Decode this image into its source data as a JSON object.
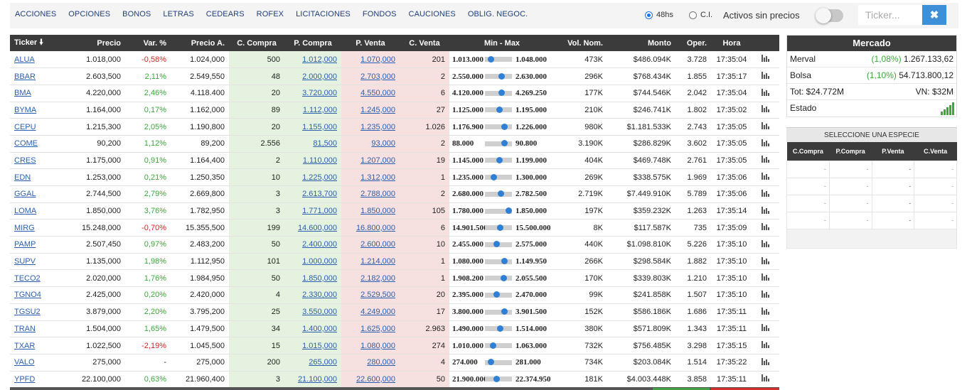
{
  "nav": [
    "ACCIONES",
    "OPCIONES",
    "BONOS",
    "LETRAS",
    "CEDEARS",
    "ROFEX",
    "LICITACIONES",
    "FONDOS",
    "CAUCIONES",
    "OBLIG. NEGOC."
  ],
  "settlement": {
    "opt1": "48hs",
    "opt2": "C.I.",
    "selected": "48hs"
  },
  "activos_label": "Activos sin precios",
  "search": {
    "placeholder": "Ticker...",
    "clear_icon": "close-icon"
  },
  "colors": {
    "header_bg": "#3b3b3b",
    "buy_bg": "#e4f2df",
    "sell_bg": "#f7e0e0",
    "positive": "#3aa83a",
    "negative": "#d22222",
    "accent": "#3d8fd8"
  },
  "table": {
    "headers": [
      "Ticker",
      "Precio",
      "Var. %",
      "Precio A.",
      "C. Compra",
      "P. Compra",
      "P. Venta",
      "C. Venta",
      "Min - Max",
      "Vol. Nom.",
      "Monto",
      "Oper.",
      "Hora"
    ],
    "sort_icon": "sort-down-arrow-icon",
    "rows": [
      {
        "ticker": "ALUA",
        "precio": "1.018,000",
        "var": "-0,58%",
        "precio_a": "1.024,000",
        "c_compra": "500",
        "p_compra": "1.012,000",
        "p_venta": "1.070,000",
        "c_venta": "201",
        "min": "1.013.000",
        "max": "1.048.000",
        "pos": 0.14,
        "vol": "473K",
        "monto": "$486.094K",
        "oper": "3.728",
        "hora": "17:35:04"
      },
      {
        "ticker": "BBAR",
        "precio": "2.603,500",
        "var": "2,11%",
        "precio_a": "2.549,550",
        "c_compra": "48",
        "p_compra": "2.000,000",
        "p_venta": "2.703,000",
        "c_venta": "2",
        "min": "2.550.000",
        "max": "2.630.000",
        "pos": 0.67,
        "vol": "296K",
        "monto": "$768.434K",
        "oper": "1.855",
        "hora": "17:35:17"
      },
      {
        "ticker": "BMA",
        "precio": "4.220,000",
        "var": "2,46%",
        "precio_a": "4.118.400",
        "c_compra": "20",
        "p_compra": "3.720,000",
        "p_venta": "4.550,000",
        "c_venta": "6",
        "min": "4.120.000",
        "max": "4.269.250",
        "pos": 0.67,
        "vol": "177K",
        "monto": "$744.546K",
        "oper": "2.042",
        "hora": "17:35:04"
      },
      {
        "ticker": "BYMA",
        "precio": "1.164,000",
        "var": "0,17%",
        "precio_a": "1.162,000",
        "c_compra": "89",
        "p_compra": "1.112,000",
        "p_venta": "1.245,000",
        "c_venta": "27",
        "min": "1.125.000",
        "max": "1.195.000",
        "pos": 0.56,
        "vol": "210K",
        "monto": "$246.741K",
        "oper": "1.802",
        "hora": "17:35:02"
      },
      {
        "ticker": "CEPU",
        "precio": "1.215,300",
        "var": "2,05%",
        "precio_a": "1.190,800",
        "c_compra": "20",
        "p_compra": "1.155,000",
        "p_venta": "1.235,000",
        "c_venta": "1.026",
        "min": "1.176.900",
        "max": "1.226.000",
        "pos": 0.78,
        "vol": "980K",
        "monto": "$1.181.533K",
        "oper": "2.743",
        "hora": "17:35:05"
      },
      {
        "ticker": "COME",
        "precio": "90,200",
        "var": "1,12%",
        "precio_a": "89,200",
        "c_compra": "2.556",
        "p_compra": "81,500",
        "p_venta": "93,000",
        "c_venta": "2",
        "min": "88.000",
        "max": "90.800",
        "pos": 0.79,
        "vol": "3.190K",
        "monto": "$286.829K",
        "oper": "3.602",
        "hora": "17:35:05"
      },
      {
        "ticker": "CRES",
        "precio": "1.175,000",
        "var": "0,91%",
        "precio_a": "1.164,400",
        "c_compra": "2",
        "p_compra": "1.110,000",
        "p_venta": "1.207,000",
        "c_venta": "19",
        "min": "1.145.000",
        "max": "1.199.000",
        "pos": 0.56,
        "vol": "404K",
        "monto": "$469.748K",
        "oper": "2.761",
        "hora": "17:35:05"
      },
      {
        "ticker": "EDN",
        "precio": "1.253,000",
        "var": "0,21%",
        "precio_a": "1.250,350",
        "c_compra": "10",
        "p_compra": "1.225,000",
        "p_venta": "1.312,000",
        "c_venta": "1",
        "min": "1.235.000",
        "max": "1.300.000",
        "pos": 0.28,
        "vol": "269K",
        "monto": "$338.575K",
        "oper": "1.969",
        "hora": "17:35:06"
      },
      {
        "ticker": "GGAL",
        "precio": "2.744,500",
        "var": "2,79%",
        "precio_a": "2.669,800",
        "c_compra": "3",
        "p_compra": "2.613,700",
        "p_venta": "2.788,000",
        "c_venta": "2",
        "min": "2.680.000",
        "max": "2.782.500",
        "pos": 0.63,
        "vol": "2.719K",
        "monto": "$7.449.910K",
        "oper": "5.789",
        "hora": "17:35:06"
      },
      {
        "ticker": "LOMA",
        "precio": "1.850,000",
        "var": "3,76%",
        "precio_a": "1.782,950",
        "c_compra": "3",
        "p_compra": "1.771,000",
        "p_venta": "1.850,000",
        "c_venta": "105",
        "min": "1.780.000",
        "max": "1.850.000",
        "pos": 1.0,
        "vol": "197K",
        "monto": "$359.232K",
        "oper": "1.263",
        "hora": "17:35:14"
      },
      {
        "ticker": "MIRG",
        "precio": "15.248,000",
        "var": "-0,70%",
        "precio_a": "15.355,500",
        "c_compra": "199",
        "p_compra": "14.600,000",
        "p_venta": "16.800,000",
        "c_venta": "6",
        "min": "14.901.500",
        "max": "15.500.000",
        "pos": 0.58,
        "vol": "8K",
        "monto": "$117.587K",
        "oper": "735",
        "hora": "17:35:09"
      },
      {
        "ticker": "PAMP",
        "precio": "2.507,450",
        "var": "0,97%",
        "precio_a": "2.483,200",
        "c_compra": "50",
        "p_compra": "2.400,000",
        "p_venta": "2.600,000",
        "c_venta": "10",
        "min": "2.455.000",
        "max": "2.575.000",
        "pos": 0.43,
        "vol": "440K",
        "monto": "$1.098.810K",
        "oper": "5.226",
        "hora": "17:35:10"
      },
      {
        "ticker": "SUPV",
        "precio": "1.135,000",
        "var": "1,98%",
        "precio_a": "1.112,950",
        "c_compra": "101",
        "p_compra": "1.000,000",
        "p_venta": "1.214,000",
        "c_venta": "1",
        "min": "1.080.000",
        "max": "1.149.950",
        "pos": 0.79,
        "vol": "266K",
        "monto": "$298.584K",
        "oper": "1.882",
        "hora": "17:35:10"
      },
      {
        "ticker": "TECO2",
        "precio": "2.020,000",
        "var": "1,76%",
        "precio_a": "1.984,950",
        "c_compra": "50",
        "p_compra": "1.850,000",
        "p_venta": "2.182,000",
        "c_venta": "1",
        "min": "1.908.200",
        "max": "2.055.500",
        "pos": 0.76,
        "vol": "170K",
        "monto": "$339.803K",
        "oper": "1.210",
        "hora": "17:35:10"
      },
      {
        "ticker": "TGNO4",
        "precio": "2.425,000",
        "var": "0,20%",
        "precio_a": "2.420,000",
        "c_compra": "4",
        "p_compra": "2.330,000",
        "p_venta": "2.529,500",
        "c_venta": "20",
        "min": "2.395.000",
        "max": "2.470.000",
        "pos": 0.4,
        "vol": "99K",
        "monto": "$241.858K",
        "oper": "1.507",
        "hora": "17:35:10"
      },
      {
        "ticker": "TGSU2",
        "precio": "3.879,000",
        "var": "2,20%",
        "precio_a": "3.795,200",
        "c_compra": "25",
        "p_compra": "3.550,000",
        "p_venta": "4.249,000",
        "c_venta": "17",
        "min": "3.800.000",
        "max": "3.901.500",
        "pos": 0.78,
        "vol": "152K",
        "monto": "$586.186K",
        "oper": "1.686",
        "hora": "17:35:11"
      },
      {
        "ticker": "TRAN",
        "precio": "1.504,000",
        "var": "1,65%",
        "precio_a": "1.479,500",
        "c_compra": "34",
        "p_compra": "1.400,000",
        "p_venta": "1.625,000",
        "c_venta": "2.963",
        "min": "1.490.000",
        "max": "1.514.000",
        "pos": 0.58,
        "vol": "380K",
        "monto": "$571.809K",
        "oper": "1.343",
        "hora": "17:35:11"
      },
      {
        "ticker": "TXAR",
        "precio": "1.022,500",
        "var": "-2,19%",
        "precio_a": "1.045,500",
        "c_compra": "15",
        "p_compra": "1.015,000",
        "p_venta": "1.080,000",
        "c_venta": "274",
        "min": "1.010.000",
        "max": "1.063.000",
        "pos": 0.24,
        "vol": "732K",
        "monto": "$756.485K",
        "oper": "3.298",
        "hora": "17:35:15"
      },
      {
        "ticker": "VALO",
        "precio": "275,000",
        "var": "-",
        "precio_a": "275,000",
        "c_compra": "200",
        "p_compra": "265,000",
        "p_venta": "280,000",
        "c_venta": "4",
        "min": "274.000",
        "max": "281.000",
        "pos": 0.14,
        "vol": "734K",
        "monto": "$203.084K",
        "oper": "1.514",
        "hora": "17:35:22"
      },
      {
        "ticker": "YPFD",
        "precio": "22.100,000",
        "var": "0,63%",
        "precio_a": "21.960,400",
        "c_compra": "3",
        "p_compra": "21.100,000",
        "p_venta": "22.600,000",
        "c_venta": "50",
        "min": "21.900.000",
        "max": "22.374.950",
        "pos": 0.42,
        "vol": "181K",
        "monto": "$4.003.448K",
        "oper": "3.858",
        "hora": "17:35:11"
      }
    ]
  },
  "mercado": {
    "title": "Mercado",
    "merval_label": "Merval",
    "merval_var": "(1,08%)",
    "merval_value": "1.267.133,62",
    "bolsa_label": "Bolsa",
    "bolsa_var": "(1,10%)",
    "bolsa_value": "54.713.800,12",
    "tot": "Tot: $24.772M",
    "vn": "VN: $32M",
    "estado_label": "Estado",
    "estado_icon": "signal-bars-icon"
  },
  "especie": {
    "title": "SELECCIONE UNA ESPECIE",
    "headers": [
      "C.Compra",
      "P.Compra",
      "P.Venta",
      "C.Venta"
    ],
    "rows": [
      [
        "-",
        "-",
        "-",
        "-"
      ],
      [
        "-",
        "-",
        "-",
        "-"
      ],
      [
        "-",
        "-",
        "-",
        "-"
      ],
      [
        "-",
        "-",
        "-",
        "-"
      ]
    ]
  }
}
